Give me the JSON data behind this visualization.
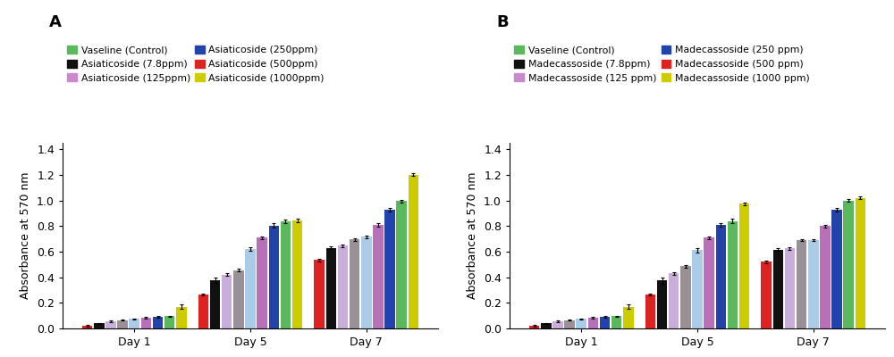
{
  "panel_A": {
    "label": "A",
    "legend_entries_col1": [
      {
        "label": "Vaseline (Control)",
        "color": "#5cb85c"
      },
      {
        "label": "Asiaticoside (125ppm)",
        "color": "#cc88cc"
      },
      {
        "label": "Asiaticoside (500ppm)",
        "color": "#dd2222"
      }
    ],
    "legend_entries_col2": [
      {
        "label": "Asiaticoside (7.8ppm)",
        "color": "#111111"
      },
      {
        "label": "Asiaticoside (250ppm)",
        "color": "#2244aa"
      },
      {
        "label": "Asiaticoside (1000ppm)",
        "color": "#cccc00"
      }
    ],
    "days": [
      "Day 1",
      "Day 5",
      "Day 7"
    ],
    "bar_order_colors": [
      "#dd2222",
      "#111111",
      "#c8aed8",
      "#9a9098",
      "#aacce8",
      "#b870b8",
      "#2244aa",
      "#5cb85c",
      "#cccc00"
    ],
    "values": {
      "Day 1": [
        0.02,
        0.04,
        0.055,
        0.065,
        0.075,
        0.085,
        0.09,
        0.095,
        0.17
      ],
      "Day 5": [
        0.265,
        0.375,
        0.42,
        0.455,
        0.62,
        0.71,
        0.805,
        0.835,
        0.845
      ],
      "Day 7": [
        0.535,
        0.63,
        0.645,
        0.695,
        0.715,
        0.81,
        0.925,
        0.995,
        1.2
      ]
    },
    "errors": {
      "Day 1": [
        0.005,
        0.005,
        0.005,
        0.005,
        0.005,
        0.005,
        0.005,
        0.005,
        0.02
      ],
      "Day 5": [
        0.01,
        0.02,
        0.01,
        0.01,
        0.015,
        0.01,
        0.015,
        0.015,
        0.015
      ],
      "Day 7": [
        0.01,
        0.01,
        0.01,
        0.01,
        0.01,
        0.015,
        0.015,
        0.01,
        0.01
      ]
    },
    "ylabel": "Absorbance at 570 nm",
    "ylim": [
      0,
      1.45
    ],
    "yticks": [
      0.0,
      0.2,
      0.4,
      0.6,
      0.8,
      1.0,
      1.2,
      1.4
    ]
  },
  "panel_B": {
    "label": "B",
    "legend_entries_col1": [
      {
        "label": "Vaseline (Control)",
        "color": "#5cb85c"
      },
      {
        "label": "Madecassoside (125 ppm)",
        "color": "#cc88cc"
      },
      {
        "label": "Madecassoside (500 ppm)",
        "color": "#dd2222"
      }
    ],
    "legend_entries_col2": [
      {
        "label": "Madecassoside (7.8ppm)",
        "color": "#111111"
      },
      {
        "label": "Madecassoside (250 ppm)",
        "color": "#2244aa"
      },
      {
        "label": "Madecassoside (1000 ppm)",
        "color": "#cccc00"
      }
    ],
    "days": [
      "Day 1",
      "Day 5",
      "Day 7"
    ],
    "bar_order_colors": [
      "#dd2222",
      "#111111",
      "#c8aed8",
      "#9a9098",
      "#aacce8",
      "#b870b8",
      "#2244aa",
      "#5cb85c",
      "#cccc00"
    ],
    "values": {
      "Day 1": [
        0.02,
        0.04,
        0.055,
        0.065,
        0.075,
        0.085,
        0.09,
        0.095,
        0.17
      ],
      "Day 5": [
        0.265,
        0.375,
        0.43,
        0.485,
        0.61,
        0.71,
        0.81,
        0.84,
        0.975
      ],
      "Day 7": [
        0.52,
        0.615,
        0.625,
        0.69,
        0.69,
        0.8,
        0.925,
        1.0,
        1.02
      ]
    },
    "errors": {
      "Day 1": [
        0.005,
        0.005,
        0.005,
        0.005,
        0.005,
        0.005,
        0.005,
        0.005,
        0.02
      ],
      "Day 5": [
        0.01,
        0.025,
        0.01,
        0.01,
        0.015,
        0.01,
        0.015,
        0.015,
        0.01
      ],
      "Day 7": [
        0.01,
        0.01,
        0.01,
        0.01,
        0.01,
        0.01,
        0.015,
        0.01,
        0.01
      ]
    },
    "ylabel": "Absorbance at 570 nm",
    "ylim": [
      0,
      1.45
    ],
    "yticks": [
      0.0,
      0.2,
      0.4,
      0.6,
      0.8,
      1.0,
      1.2,
      1.4
    ]
  },
  "background_color": "#ffffff",
  "bar_width": 0.075,
  "group_positions": [
    0.38,
    1.12,
    1.86
  ],
  "group_labels": [
    "Day 1",
    "Day 5",
    "Day 7"
  ]
}
